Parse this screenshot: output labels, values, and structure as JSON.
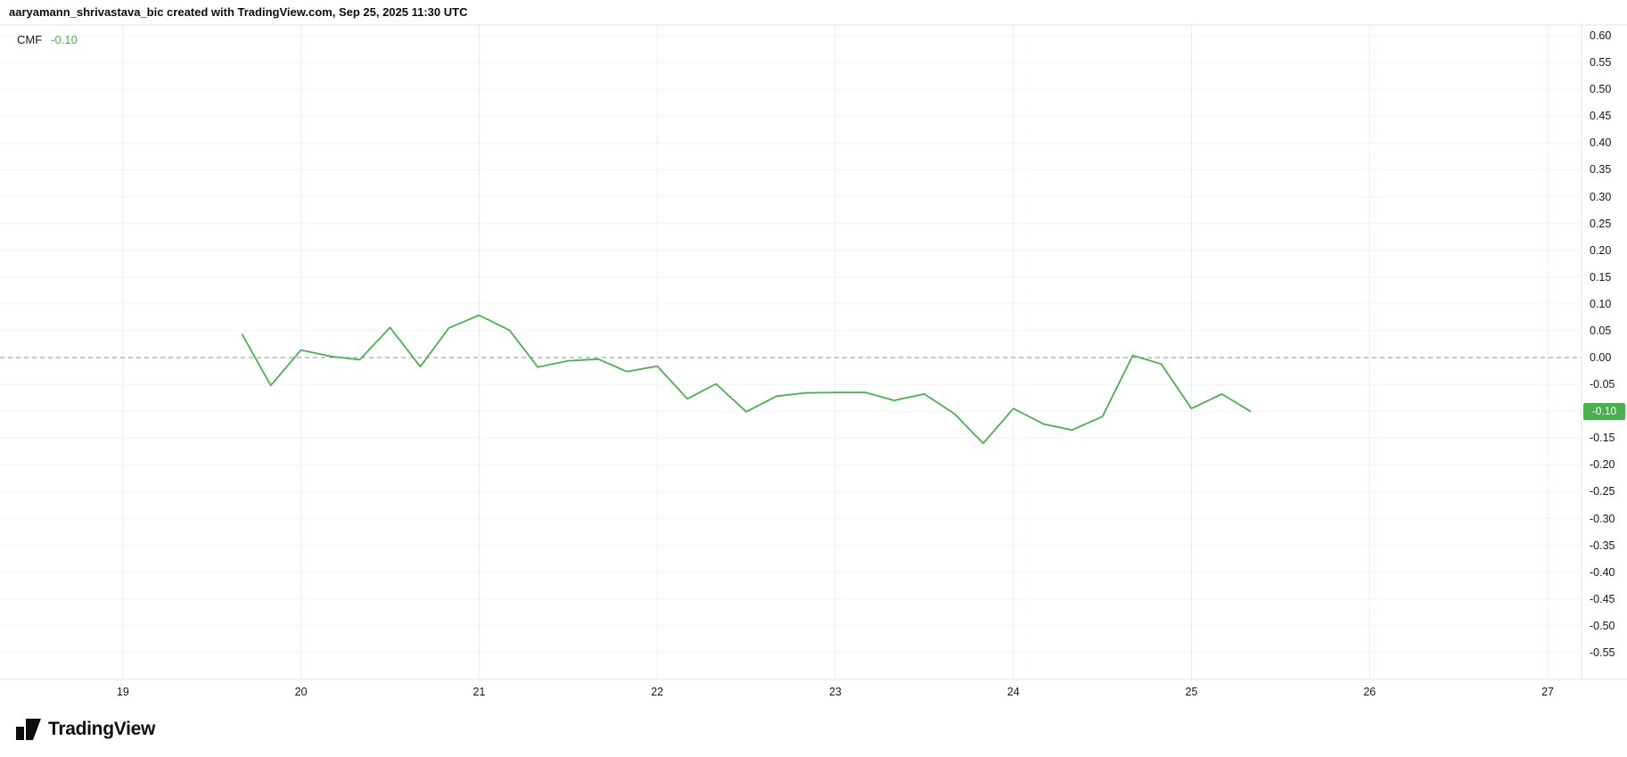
{
  "attribution": "aaryamann_shrivastava_bic created with TradingView.com, Sep 25, 2025 11:30 UTC",
  "legend": {
    "name": "CMF",
    "value": "-0.10"
  },
  "badge": {
    "value": "-0.10",
    "bg": "#4caf50",
    "text_color": "#ffffff"
  },
  "logo": {
    "text": "TradingView"
  },
  "colors": {
    "line": "#4caf50",
    "grid_h": "#f2f4f8",
    "grid_v": "#e9edf3",
    "separator": "#e0e3eb",
    "zero_line": "#8f939e",
    "axis_text": "#131722",
    "background": "#ffffff"
  },
  "chart_data": {
    "type": "line",
    "title": "CMF",
    "xlabel": "",
    "ylabel": "",
    "legend_position": "top-left",
    "grid": true,
    "x_ticks": [
      "19",
      "20",
      "21",
      "22",
      "23",
      "24",
      "25",
      "26",
      "27"
    ],
    "xlim": [
      18.31,
      27.19
    ],
    "y_ticks": [
      "0.60",
      "0.55",
      "0.50",
      "0.45",
      "0.40",
      "0.35",
      "0.30",
      "0.25",
      "0.20",
      "0.15",
      "0.10",
      "0.05",
      "0.00",
      "-0.05",
      "-0.10",
      "-0.15",
      "-0.20",
      "-0.25",
      "-0.30",
      "-0.35",
      "-0.40",
      "-0.45",
      "-0.50",
      "-0.55"
    ],
    "ylim": [
      -0.6,
      0.62
    ],
    "zero_line": 0,
    "last_value": -0.1,
    "series": [
      {
        "name": "CMF",
        "color": "#4caf50",
        "points": [
          [
            19.67,
            0.043
          ],
          [
            19.83,
            -0.052
          ],
          [
            20.0,
            0.014
          ],
          [
            20.17,
            0.002
          ],
          [
            20.33,
            -0.004
          ],
          [
            20.5,
            0.056
          ],
          [
            20.67,
            -0.017
          ],
          [
            20.83,
            0.055
          ],
          [
            21.0,
            0.079
          ],
          [
            21.17,
            0.051
          ],
          [
            21.33,
            -0.018
          ],
          [
            21.5,
            -0.006
          ],
          [
            21.67,
            -0.003
          ],
          [
            21.83,
            -0.026
          ],
          [
            22.0,
            -0.016
          ],
          [
            22.17,
            -0.077
          ],
          [
            22.33,
            -0.049
          ],
          [
            22.5,
            -0.101
          ],
          [
            22.67,
            -0.072
          ],
          [
            22.83,
            -0.066
          ],
          [
            23.0,
            -0.065
          ],
          [
            23.17,
            -0.065
          ],
          [
            23.33,
            -0.08
          ],
          [
            23.5,
            -0.068
          ],
          [
            23.67,
            -0.105
          ],
          [
            23.83,
            -0.16
          ],
          [
            24.0,
            -0.095
          ],
          [
            24.17,
            -0.124
          ],
          [
            24.33,
            -0.135
          ],
          [
            24.5,
            -0.11
          ],
          [
            24.67,
            0.004
          ],
          [
            24.83,
            -0.012
          ],
          [
            25.0,
            -0.095
          ],
          [
            25.17,
            -0.068
          ],
          [
            25.33,
            -0.1
          ]
        ]
      }
    ]
  }
}
